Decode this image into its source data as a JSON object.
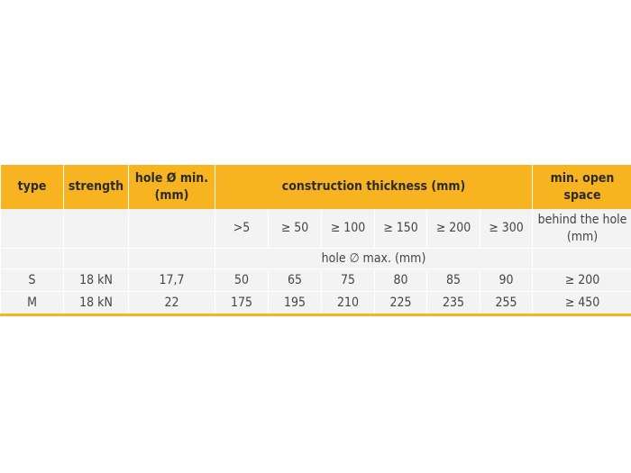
{
  "table": {
    "header": [
      "type",
      "strength",
      "hole Ø min. (mm)",
      "construction thickness (mm)",
      "min. open space"
    ],
    "subheader": [
      ">5",
      "≥ 50",
      "≥ 100",
      "≥ 150",
      "≥ 200",
      "≥ 300",
      "behind the hole (mm)"
    ],
    "span_label": "hole ∅ max. (mm)",
    "rows": [
      [
        "S",
        "18 kN",
        "17,7",
        "50",
        "65",
        "75",
        "80",
        "85",
        "90",
        "≥ 200"
      ],
      [
        "M",
        "18 kN",
        "22",
        "175",
        "195",
        "210",
        "225",
        "235",
        "255",
        "≥ 450"
      ]
    ]
  }
}
